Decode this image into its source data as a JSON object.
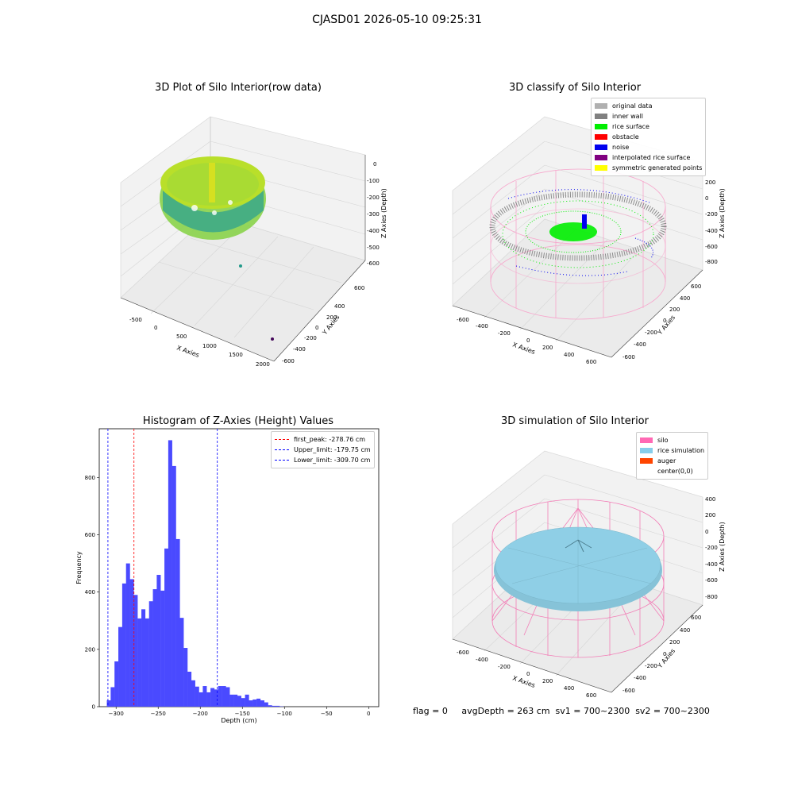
{
  "suptitle": "CJASD01 2026-05-10 09:25:31",
  "footer": "flag = 0     avgDepth = 263 cm  sv1 = 700~2300  sv2 = 700~2300",
  "panels": {
    "raw": {
      "title": "3D Plot of Silo Interior(row data)",
      "xlabel": "X Axies",
      "ylabel": "Y Axies",
      "zlabel": "Z Axies (Depth)",
      "xticks": [
        "-500",
        "0",
        "500",
        "1000",
        "1500",
        "2000"
      ],
      "yticks": [
        "600",
        "400",
        "200",
        "0",
        "-200",
        "-400",
        "-600",
        "-800"
      ],
      "zticks": [
        "0",
        "-100",
        "-200",
        "-300",
        "-400",
        "-500",
        "-600"
      ]
    },
    "classify": {
      "title": "3D classify of Silo Interior",
      "xlabel": "X Axies",
      "ylabel": "Y Axies",
      "zlabel": "Z Axies (Depth)",
      "xticks": [
        "-600",
        "-400",
        "-200",
        "0",
        "200",
        "400",
        "600"
      ],
      "yticks": [
        "600",
        "400",
        "200",
        "0",
        "-200",
        "-400",
        "-600"
      ],
      "zticks": [
        "200",
        "0",
        "-200",
        "-400",
        "-600",
        "-800"
      ],
      "legend": [
        {
          "label": "original data",
          "color": "#b0b0b0"
        },
        {
          "label": "inner wall",
          "color": "#808080"
        },
        {
          "label": "rice surface",
          "color": "#00ee00"
        },
        {
          "label": "obstacle",
          "color": "#ff0000"
        },
        {
          "label": "noise",
          "color": "#0000ee"
        },
        {
          "label": "interpolated rice surface",
          "color": "#800080"
        },
        {
          "label": "symmetric generated points",
          "color": "#ffff00"
        }
      ]
    },
    "simulation": {
      "title": "3D simulation of Silo Interior",
      "xlabel": "X Axies",
      "ylabel": "Y Axies",
      "zlabel": "Z Axies (Depth)",
      "xticks": [
        "-600",
        "-400",
        "-200",
        "0",
        "200",
        "400",
        "600"
      ],
      "yticks": [
        "600",
        "400",
        "200",
        "0",
        "-200",
        "-400",
        "-600"
      ],
      "zticks": [
        "400",
        "200",
        "0",
        "-200",
        "-400",
        "-600",
        "-800"
      ],
      "legend": [
        {
          "label": "silo",
          "color": "#ff69b4"
        },
        {
          "label": "rice simulation",
          "color": "#87ceeb"
        },
        {
          "label": "auger",
          "color": "#ff4500"
        },
        {
          "label": "center(0,0)",
          "color": "#ffffff"
        }
      ]
    }
  },
  "chart_data": {
    "type": "bar",
    "title": "Histogram of Z-Axies (Height) Values",
    "xlabel": "Depth (cm)",
    "ylabel": "Frequency",
    "xlim": [
      -320,
      12
    ],
    "ylim": [
      0,
      970
    ],
    "xticks": [
      -300,
      -250,
      -200,
      -150,
      -100,
      -50,
      0
    ],
    "yticks": [
      0,
      200,
      400,
      600,
      800
    ],
    "bar_color": "#4a4aff",
    "bin_start": -311,
    "bin_width": 4.56,
    "values": [
      22,
      68,
      158,
      278,
      430,
      500,
      445,
      390,
      308,
      340,
      308,
      368,
      410,
      460,
      405,
      552,
      930,
      840,
      585,
      310,
      205,
      122,
      92,
      70,
      50,
      72,
      50,
      65,
      60,
      72,
      72,
      68,
      42,
      42,
      38,
      30,
      42,
      22,
      25,
      28,
      22,
      15,
      5,
      3,
      3,
      1,
      0,
      0,
      0,
      0
    ],
    "vlines": [
      {
        "label": "first_peak: -278.76 cm",
        "x": -278.76,
        "color": "#ff0000"
      },
      {
        "label": "Upper_limit: -179.75 cm",
        "x": -179.75,
        "color": "#0000ff"
      },
      {
        "label": "Lower_limit: -309.70 cm",
        "x": -309.7,
        "color": "#0000ff"
      }
    ]
  }
}
